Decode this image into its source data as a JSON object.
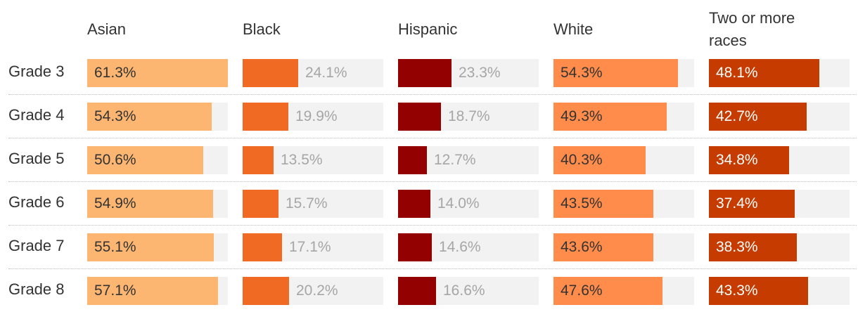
{
  "chart_data": {
    "type": "bar",
    "categories": [
      "Grade 3",
      "Grade 4",
      "Grade 5",
      "Grade 6",
      "Grade 7",
      "Grade 8"
    ],
    "xlim": [
      0,
      61.3
    ],
    "series": [
      {
        "name": "Asian",
        "color": "#fdb671",
        "label_color": "#333333",
        "values": [
          61.3,
          54.3,
          50.6,
          54.9,
          55.1,
          57.1
        ]
      },
      {
        "name": "Black",
        "color": "#f06a23",
        "label_color": "#a6a6a6",
        "values": [
          24.1,
          19.9,
          13.5,
          15.7,
          17.1,
          20.2
        ]
      },
      {
        "name": "Hispanic",
        "color": "#930101",
        "label_color": "#a6a6a6",
        "values": [
          23.3,
          18.7,
          12.7,
          14.0,
          14.6,
          16.6
        ]
      },
      {
        "name": "White",
        "color": "#ff8c4b",
        "label_color": "#333333",
        "values": [
          54.3,
          49.3,
          40.3,
          43.5,
          43.6,
          47.6
        ]
      },
      {
        "name": "Two or more races",
        "color": "#c63c00",
        "label_color": "#ffffff",
        "values": [
          48.1,
          42.7,
          34.8,
          37.4,
          38.3,
          43.3
        ]
      }
    ],
    "value_labels": [
      [
        "61.3%",
        "54.3%",
        "50.6%",
        "54.9%",
        "55.1%",
        "57.1%"
      ],
      [
        "24.1%",
        "19.9%",
        "13.5%",
        "15.7%",
        "17.1%",
        "20.2%"
      ],
      [
        "23.3%",
        "18.7%",
        "12.7%",
        "14.0%",
        "14.6%",
        "16.6%"
      ],
      [
        "54.3%",
        "49.3%",
        "40.3%",
        "43.5%",
        "43.6%",
        "47.6%"
      ],
      [
        "48.1%",
        "42.7%",
        "34.8%",
        "37.4%",
        "38.3%",
        "43.3%"
      ]
    ],
    "colors": {
      "track": "#f2f2f2",
      "text": "#333333",
      "muted": "#a6a6a6"
    }
  }
}
